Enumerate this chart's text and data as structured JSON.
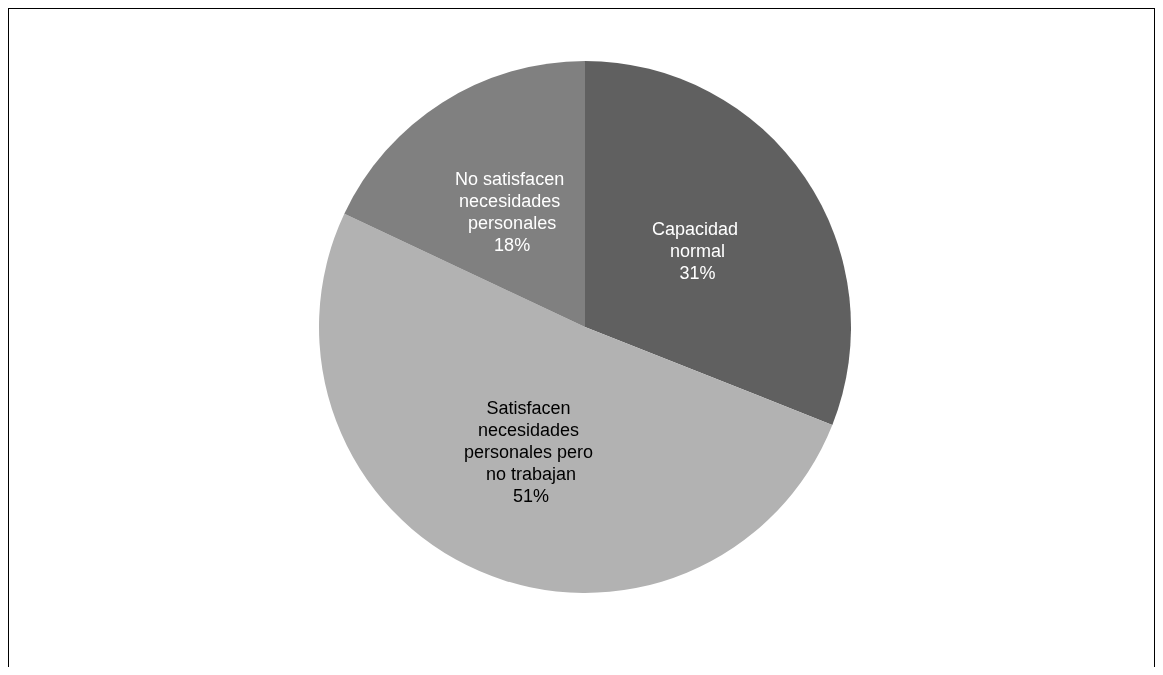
{
  "chart_data": {
    "type": "pie",
    "categories": [
      "Capacidad normal",
      "Satisfacen necesidades personales pero no trabajan",
      "No satisfacen necesidades personales"
    ],
    "values": [
      31,
      51,
      18
    ],
    "colors": [
      "#606060",
      "#b2b2b2",
      "#808080"
    ],
    "value_labels": [
      "31%",
      "51%",
      "18%"
    ],
    "legend": false
  }
}
